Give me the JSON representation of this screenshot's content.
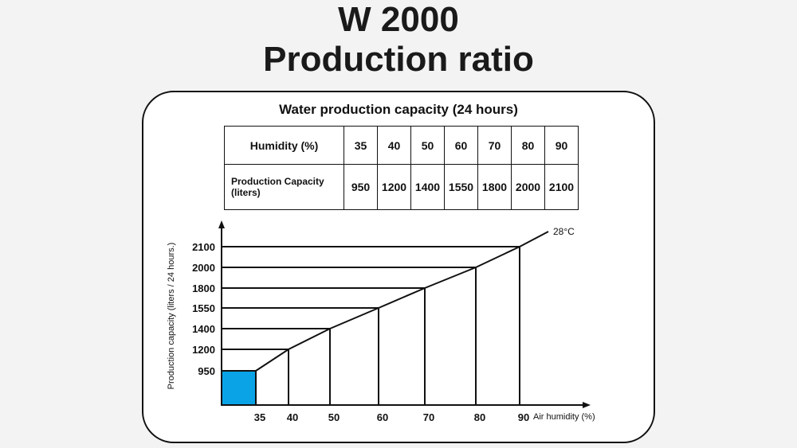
{
  "header": {
    "title_line1": "W 2000",
    "title_line2": "Production ratio"
  },
  "table": {
    "title": "Water production capacity (24 hours)",
    "row1_label": "Humidity (%)",
    "row2_label": "Production Capacity",
    "row2_label_unit": "(liters)",
    "humidity": [
      "35",
      "40",
      "50",
      "60",
      "70",
      "80",
      "90"
    ],
    "capacity": [
      "950",
      "1200",
      "1400",
      "1550",
      "1800",
      "2000",
      "2100"
    ]
  },
  "chart_data": {
    "type": "line",
    "x": [
      35,
      40,
      50,
      60,
      70,
      80,
      90
    ],
    "y": [
      950,
      1200,
      1400,
      1550,
      1800,
      2000,
      2100
    ],
    "x_tick_labels": [
      "35",
      "40",
      "50",
      "60",
      "70",
      "80",
      "90"
    ],
    "y_tick_labels": [
      "950",
      "1200",
      "1400",
      "1550",
      "1800",
      "2000",
      "2100"
    ],
    "xlabel": "Air humidity (%)",
    "ylabel": "Production capacity (liters / 24 hours.)",
    "series": [
      {
        "name": "28°C",
        "x": [
          35,
          40,
          50,
          60,
          70,
          80,
          90
        ],
        "y": [
          950,
          1200,
          1400,
          1550,
          1800,
          2000,
          2100
        ]
      }
    ],
    "highlight_color": "#0aa3e6",
    "grid": false
  }
}
